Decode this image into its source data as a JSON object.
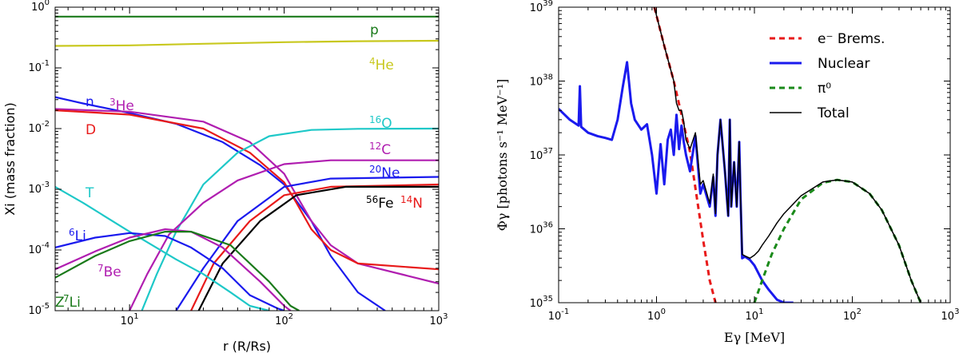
{
  "chart_data": [
    {
      "type": "line",
      "xscale": "log",
      "yscale": "log",
      "xlim": [
        3.3,
        1000
      ],
      "ylim": [
        1e-05,
        1
      ],
      "xlabel": "r (R/Rs)",
      "ylabel": "Xi (mass fraction)",
      "x_ticks": [
        {
          "value": 10,
          "label": "10",
          "sup": "1"
        },
        {
          "value": 100,
          "label": "10",
          "sup": "2"
        },
        {
          "value": 1000,
          "label": "10",
          "sup": "3"
        }
      ],
      "y_ticks": [
        {
          "value": 1,
          "label": "10",
          "sup": "0"
        },
        {
          "value": 0.1,
          "label": "10",
          "sup": "-1"
        },
        {
          "value": 0.01,
          "label": "10",
          "sup": "-2"
        },
        {
          "value": 0.001,
          "label": "10",
          "sup": "-3"
        },
        {
          "value": 0.0001,
          "label": "10",
          "sup": "-4"
        },
        {
          "value": 1e-05,
          "label": "10",
          "sup": "-5"
        }
      ],
      "series": [
        {
          "name": "p",
          "color": "#1a7a1a",
          "x": [
            3.3,
            10,
            100,
            1000
          ],
          "y": [
            0.7,
            0.7,
            0.7,
            0.7
          ]
        },
        {
          "name": "4He",
          "color": "#c8c81e",
          "x": [
            3.3,
            10,
            30,
            100,
            300,
            1000
          ],
          "y": [
            0.23,
            0.235,
            0.25,
            0.265,
            0.275,
            0.28
          ]
        },
        {
          "name": "n",
          "color": "#1a1aee",
          "x": [
            3.3,
            5,
            10,
            20,
            40,
            70,
            100,
            150,
            200,
            300,
            450
          ],
          "y": [
            0.033,
            0.026,
            0.018,
            0.012,
            0.006,
            0.0025,
            0.0012,
            0.0003,
            8e-05,
            2e-05,
            1e-05
          ]
        },
        {
          "name": "3He",
          "color": "#b01eb0",
          "x": [
            3.3,
            10,
            30,
            60,
            100,
            120,
            150,
            200,
            300,
            1000
          ],
          "y": [
            0.021,
            0.019,
            0.013,
            0.006,
            0.0018,
            0.0008,
            0.0003,
            0.00012,
            6e-05,
            2.8e-05
          ]
        },
        {
          "name": "D",
          "color": "#e81a1a",
          "x": [
            3.3,
            10,
            30,
            60,
            100,
            120,
            150,
            200,
            300,
            1000
          ],
          "y": [
            0.02,
            0.017,
            0.01,
            0.004,
            0.0013,
            0.0006,
            0.00022,
            0.0001,
            6e-05,
            4.8e-05
          ]
        },
        {
          "name": "16O",
          "color": "#1ec8c8",
          "x": [
            12,
            15,
            20,
            30,
            50,
            80,
            150,
            300,
            1000
          ],
          "y": [
            1e-05,
            4e-05,
            0.0002,
            0.0012,
            0.004,
            0.0075,
            0.0095,
            0.0099,
            0.01
          ]
        },
        {
          "name": "12C",
          "color": "#b01eb0",
          "x": [
            10,
            13,
            18,
            30,
            50,
            100,
            200,
            1000
          ],
          "y": [
            1e-05,
            4e-05,
            0.00018,
            0.0006,
            0.0014,
            0.0026,
            0.003,
            0.003
          ]
        },
        {
          "name": "20Ne",
          "color": "#1a1aee",
          "x": [
            20,
            30,
            50,
            100,
            200,
            1000
          ],
          "y": [
            1e-05,
            5e-05,
            0.0003,
            0.0011,
            0.0015,
            0.0016
          ]
        },
        {
          "name": "14N",
          "color": "#e81a1a",
          "x": [
            25,
            35,
            60,
            100,
            200,
            1000
          ],
          "y": [
            1e-05,
            6e-05,
            0.0003,
            0.0008,
            0.0011,
            0.0012
          ]
        },
        {
          "name": "56Fe",
          "color": "#000000",
          "x": [
            28,
            40,
            70,
            120,
            250,
            1000
          ],
          "y": [
            1e-05,
            6e-05,
            0.0003,
            0.0008,
            0.0011,
            0.0011
          ]
        },
        {
          "name": "T",
          "color": "#1ec8c8",
          "x": [
            3.3,
            5,
            10,
            20,
            30,
            45,
            60,
            80
          ],
          "y": [
            0.0011,
            0.0006,
            0.0002,
            7e-05,
            4e-05,
            2e-05,
            1.2e-05,
            1e-05
          ]
        },
        {
          "name": "6Li",
          "color": "#1a1aee",
          "x": [
            3.3,
            6,
            10,
            17,
            25,
            40,
            60,
            90,
            100
          ],
          "y": [
            0.00011,
            0.00016,
            0.00019,
            0.00017,
            0.00011,
            5e-05,
            1.8e-05,
            1.1e-05,
            1e-05
          ]
        },
        {
          "name": "7Be",
          "color": "#b01eb0",
          "x": [
            3.3,
            6,
            10,
            17,
            25,
            40,
            70,
            100,
            110
          ],
          "y": [
            4.8e-05,
            9.5e-05,
            0.00016,
            0.00022,
            0.0002,
            0.00011,
            3e-05,
            1.2e-05,
            1e-05
          ]
        },
        {
          "name": "7Li",
          "color": "#1a7a1a",
          "x": [
            3.3,
            6,
            10,
            17,
            25,
            45,
            80,
            110,
            125
          ],
          "y": [
            3.5e-05,
            8e-05,
            0.00014,
            0.0002,
            0.0002,
            0.00012,
            3e-05,
            1.2e-05,
            1e-05
          ]
        }
      ],
      "labels": [
        {
          "text": "p",
          "color": "#1a7a1a"
        },
        {
          "pre": "4",
          "text": "He",
          "color": "#c8c81e"
        },
        {
          "text": "n",
          "color": "#1a1aee"
        },
        {
          "pre": "3",
          "text": "He",
          "color": "#b01eb0"
        },
        {
          "text": "D",
          "color": "#e81a1a"
        },
        {
          "pre": "16",
          "text": "O",
          "color": "#1ec8c8"
        },
        {
          "pre": "12",
          "text": "C",
          "color": "#b01eb0"
        },
        {
          "pre": "20",
          "text": "Ne",
          "color": "#1a1aee"
        },
        {
          "text": "T",
          "color": "#1ec8c8"
        },
        {
          "pre": "56",
          "text": "Fe",
          "color": "#000000"
        },
        {
          "pre": "14",
          "text": "N",
          "color": "#e81a1a"
        },
        {
          "pre": "6",
          "text": "Li",
          "color": "#1a1aee"
        },
        {
          "pre": "7",
          "text": "Be",
          "color": "#b01eb0"
        },
        {
          "pre": "7",
          "text": "Li",
          "color": "#1a7a1a"
        },
        {
          "text": "Z",
          "color": "#1a7a1a"
        }
      ]
    },
    {
      "type": "line",
      "xscale": "log",
      "yscale": "log",
      "xlim": [
        0.1,
        1000
      ],
      "ylim": [
        1e+35,
        1e+39
      ],
      "xlabel": "Eγ [MeV]",
      "ylabel": "Φγ [photons s⁻¹ MeV⁻¹]",
      "x_ticks": [
        {
          "value": 0.1,
          "label": "10",
          "sup": "-1"
        },
        {
          "value": 1,
          "label": "10",
          "sup": "0"
        },
        {
          "value": 10,
          "label": "10",
          "sup": "1"
        },
        {
          "value": 100,
          "label": "10",
          "sup": "2"
        },
        {
          "value": 1000,
          "label": "10",
          "sup": "3"
        }
      ],
      "y_ticks": [
        {
          "value": 1e+35,
          "label": "10",
          "sup": "35"
        },
        {
          "value": 1e+36,
          "label": "10",
          "sup": "36"
        },
        {
          "value": 1e+37,
          "label": "10",
          "sup": "37"
        },
        {
          "value": 1e+38,
          "label": "10",
          "sup": "38"
        },
        {
          "value": 1e+39,
          "label": "10",
          "sup": "39"
        }
      ],
      "legend": {
        "position": "top-right",
        "entries": [
          {
            "label": "e⁻ Brems.",
            "color": "#e81a1a",
            "style": "dashed"
          },
          {
            "label": "Nuclear",
            "color": "#1a1aee",
            "style": "solid"
          },
          {
            "label": "π⁰",
            "color": "#1a8a1a",
            "style": "dashed"
          },
          {
            "label": "Total",
            "color": "#000000",
            "style": "solid"
          }
        ]
      },
      "series": [
        {
          "name": "Brems",
          "color": "#e81a1a",
          "style": "dashed",
          "width": 3,
          "x": [
            0.95,
            1.2,
            1.5,
            1.8,
            2.2,
            2.6,
            3.0,
            3.5,
            4.0
          ],
          "y": [
            1e+39,
            3e+38,
            1e+38,
            3.5e+37,
            1.1e+37,
            2.5e+36,
            7e+35,
            2e+35,
            1e+35
          ]
        },
        {
          "name": "Nuclear",
          "color": "#1a1aee",
          "style": "solid",
          "width": 3,
          "x": [
            0.1,
            0.13,
            0.16,
            0.165,
            0.17,
            0.2,
            0.25,
            0.3,
            0.35,
            0.4,
            0.45,
            0.5,
            0.55,
            0.6,
            0.7,
            0.8,
            0.9,
            1.0,
            1.1,
            1.2,
            1.3,
            1.4,
            1.5,
            1.6,
            1.7,
            1.8,
            1.9,
            2.0,
            2.2,
            2.5,
            2.8,
            3.0,
            3.5,
            3.8,
            4.0,
            4.2,
            4.5,
            5.0,
            5.4,
            5.6,
            5.8,
            6.2,
            6.6,
            7.0,
            7.2,
            7.5,
            8.0,
            9.0,
            10,
            11,
            12,
            14,
            17,
            20,
            25
          ],
          "y": [
            4.2e+37,
            3e+37,
            2.5e+37,
            8.5e+37,
            2.4e+37,
            2e+37,
            1.8e+37,
            1.7e+37,
            1.6e+37,
            3e+37,
            8e+37,
            1.8e+38,
            5e+37,
            3e+37,
            2.2e+37,
            2.6e+37,
            1e+37,
            3e+36,
            1.4e+37,
            4e+36,
            1.6e+37,
            2.2e+37,
            1e+37,
            3.5e+37,
            1.2e+37,
            2.5e+37,
            1.5e+37,
            1e+37,
            6e+36,
            1.8e+37,
            3e+36,
            4e+36,
            2e+36,
            5e+36,
            1.5e+36,
            1e+37,
            3e+37,
            6e+36,
            1.5e+36,
            3e+37,
            2e+36,
            8e+36,
            2e+36,
            1.5e+37,
            3e+36,
            4e+35,
            4.2e+35,
            3.8e+35,
            3.2e+35,
            2.5e+35,
            2e+35,
            1.5e+35,
            1.1e+35,
            1e+35,
            1e+35
          ]
        },
        {
          "name": "pi0",
          "color": "#1a8a1a",
          "style": "dashed",
          "width": 3,
          "x": [
            10,
            12,
            15,
            20,
            30,
            50,
            70,
            100,
            150,
            200,
            300,
            400,
            500
          ],
          "y": [
            1e+35,
            2e+35,
            4.5e+35,
            1e+36,
            2.5e+36,
            4.2e+36,
            4.6e+36,
            4.3e+36,
            3e+36,
            1.8e+36,
            6e+35,
            2e+35,
            1e+35
          ]
        },
        {
          "name": "Total",
          "color": "#000000",
          "style": "solid",
          "width": 1.5,
          "x": [
            0.95,
            1.2,
            1.5,
            1.6,
            1.7,
            1.8,
            1.9,
            2.0,
            2.2,
            2.5,
            2.8,
            3.0,
            3.5,
            3.8,
            4.0,
            4.2,
            4.5,
            5.0,
            5.4,
            5.6,
            5.8,
            6.2,
            6.6,
            7.0,
            7.2,
            7.5,
            8.0,
            9.0,
            10,
            11,
            12,
            14,
            17,
            20,
            30,
            50,
            70,
            100,
            150,
            200,
            300,
            400,
            500
          ],
          "y": [
            1e+39,
            3e+38,
            1e+38,
            5e+37,
            4e+37,
            4e+37,
            2.8e+37,
            1.6e+37,
            1.2e+37,
            2e+37,
            4e+36,
            4.5e+36,
            2.2e+36,
            5.5e+36,
            1.6e+36,
            1e+37,
            3e+37,
            6e+36,
            1.5e+36,
            3e+37,
            2e+36,
            8e+36,
            2e+36,
            1.5e+37,
            3e+36,
            4.5e+35,
            4.3e+35,
            4e+35,
            4.4e+35,
            5e+35,
            6e+35,
            8e+35,
            1.2e+36,
            1.6e+36,
            2.8e+36,
            4.3e+36,
            4.6e+36,
            4.3e+36,
            3e+36,
            1.8e+36,
            6e+35,
            2e+35,
            1e+35
          ]
        }
      ]
    }
  ]
}
